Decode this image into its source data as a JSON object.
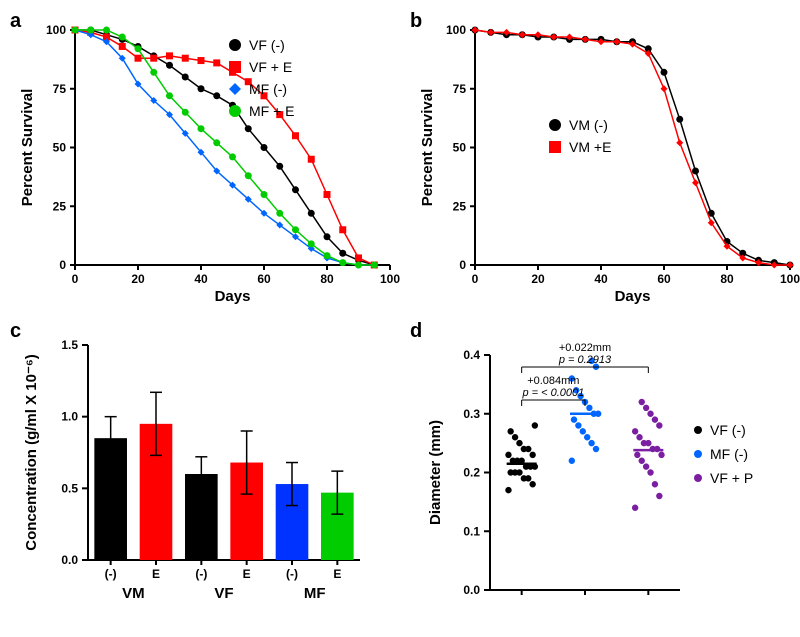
{
  "panel_a": {
    "label": "a",
    "type": "line",
    "xlabel": "Days",
    "ylabel": "Percent Survival",
    "xlim": [
      0,
      100
    ],
    "ylim": [
      0,
      100
    ],
    "xtick_step": 20,
    "ytick_step": 25,
    "background_color": "#ffffff",
    "legend": [
      {
        "name": "VF (-)",
        "marker": "circle",
        "color": "#000000"
      },
      {
        "name": "VF + E",
        "marker": "square",
        "color": "#ff0000"
      },
      {
        "name": "MF (-)",
        "marker": "diamond",
        "color": "#0066ff"
      },
      {
        "name": "MF + E",
        "marker": "circle",
        "color": "#00cc00"
      }
    ],
    "series": {
      "VF_minus": {
        "color": "#000000",
        "marker": "circle",
        "x": [
          0,
          5,
          10,
          15,
          20,
          25,
          30,
          35,
          40,
          45,
          50,
          55,
          60,
          65,
          70,
          75,
          80,
          85,
          90,
          95
        ],
        "y": [
          100,
          100,
          98,
          96,
          93,
          89,
          85,
          80,
          75,
          72,
          68,
          58,
          50,
          42,
          32,
          22,
          12,
          5,
          2,
          0
        ]
      },
      "VF_E": {
        "color": "#ff0000",
        "marker": "square",
        "x": [
          0,
          5,
          10,
          15,
          20,
          25,
          30,
          35,
          40,
          45,
          50,
          55,
          60,
          65,
          70,
          75,
          80,
          85,
          90,
          95
        ],
        "y": [
          100,
          99,
          97,
          93,
          88,
          88,
          89,
          88,
          87,
          86,
          82,
          78,
          72,
          64,
          55,
          45,
          30,
          15,
          3,
          0
        ]
      },
      "MF_minus": {
        "color": "#0066ff",
        "marker": "diamond",
        "x": [
          0,
          5,
          10,
          15,
          20,
          25,
          30,
          35,
          40,
          45,
          50,
          55,
          60,
          65,
          70,
          75,
          80,
          85,
          90,
          95
        ],
        "y": [
          100,
          98,
          95,
          88,
          77,
          70,
          64,
          56,
          48,
          40,
          34,
          28,
          22,
          17,
          12,
          7,
          3,
          1,
          0,
          0
        ]
      },
      "MF_E": {
        "color": "#00cc00",
        "marker": "circle",
        "x": [
          0,
          5,
          10,
          15,
          20,
          25,
          30,
          35,
          40,
          45,
          50,
          55,
          60,
          65,
          70,
          75,
          80,
          85,
          90,
          95
        ],
        "y": [
          100,
          100,
          100,
          97,
          92,
          82,
          72,
          65,
          58,
          52,
          46,
          38,
          30,
          22,
          15,
          9,
          4,
          1,
          0,
          0
        ]
      }
    }
  },
  "panel_b": {
    "label": "b",
    "type": "line",
    "xlabel": "Days",
    "ylabel": "Percent Survival",
    "xlim": [
      0,
      100
    ],
    "ylim": [
      0,
      100
    ],
    "xtick_step": 20,
    "ytick_step": 25,
    "legend": [
      {
        "name": "VM (-)",
        "marker": "circle",
        "color": "#000000"
      },
      {
        "name": "VM +E",
        "marker": "square",
        "color": "#ff0000"
      }
    ],
    "series": {
      "VM_minus": {
        "color": "#000000",
        "marker": "circle",
        "x": [
          0,
          5,
          10,
          15,
          20,
          25,
          30,
          35,
          40,
          45,
          50,
          55,
          60,
          65,
          70,
          75,
          80,
          85,
          90,
          95,
          100
        ],
        "y": [
          100,
          99,
          98,
          98,
          97,
          97,
          96,
          96,
          96,
          95,
          95,
          92,
          82,
          62,
          40,
          22,
          10,
          5,
          2,
          1,
          0
        ]
      },
      "VM_E": {
        "color": "#ff0000",
        "marker": "diamond",
        "x": [
          0,
          5,
          10,
          15,
          20,
          25,
          30,
          35,
          40,
          45,
          50,
          55,
          60,
          65,
          70,
          75,
          80,
          85,
          90,
          95,
          100
        ],
        "y": [
          100,
          99,
          99,
          98,
          98,
          97,
          97,
          96,
          95,
          95,
          94,
          90,
          75,
          52,
          35,
          18,
          8,
          3,
          1,
          0,
          0
        ]
      }
    }
  },
  "panel_c": {
    "label": "c",
    "type": "bar",
    "ylabel": "Concentration (g/ml X 10⁻⁶)",
    "ylim": [
      0,
      1.5
    ],
    "ytick_step": 0.5,
    "bar_width": 0.72,
    "groups": [
      "VM",
      "VF",
      "MF"
    ],
    "sub_labels": [
      "(-)",
      "E"
    ],
    "bars": [
      {
        "group": "VM",
        "cond": "(-)",
        "value": 0.85,
        "err": 0.15,
        "color": "#000000"
      },
      {
        "group": "VM",
        "cond": "E",
        "value": 0.95,
        "err": 0.22,
        "color": "#ff0000"
      },
      {
        "group": "VF",
        "cond": "(-)",
        "value": 0.6,
        "err": 0.12,
        "color": "#000000"
      },
      {
        "group": "VF",
        "cond": "E",
        "value": 0.68,
        "err": 0.22,
        "color": "#ff0000"
      },
      {
        "group": "MF",
        "cond": "(-)",
        "value": 0.53,
        "err": 0.15,
        "color": "#0033ff"
      },
      {
        "group": "MF",
        "cond": "E",
        "value": 0.47,
        "err": 0.15,
        "color": "#00cc00"
      }
    ]
  },
  "panel_d": {
    "label": "d",
    "type": "scatter",
    "ylabel": "Diameter (mm)",
    "ylim": [
      0.0,
      0.4
    ],
    "ytick_step": 0.1,
    "categories": [
      {
        "name": "VF (-)",
        "color": "#000000"
      },
      {
        "name": "MF (-)",
        "color": "#0066ff"
      },
      {
        "name": "VF + P",
        "color": "#7b1fa2"
      }
    ],
    "means": [
      0.215,
      0.3,
      0.238
    ],
    "stats": [
      {
        "label": "+0.084mm",
        "p": "p = < 0.0001",
        "from": 0,
        "to": 1
      },
      {
        "label": "+0.022mm",
        "p": "p = 0.2913",
        "from": 0,
        "to": 2
      }
    ],
    "points": {
      "VF_minus": [
        0.17,
        0.18,
        0.19,
        0.19,
        0.2,
        0.2,
        0.2,
        0.21,
        0.21,
        0.21,
        0.22,
        0.22,
        0.22,
        0.23,
        0.23,
        0.24,
        0.24,
        0.25,
        0.26,
        0.27,
        0.28
      ],
      "MF_minus": [
        0.22,
        0.24,
        0.25,
        0.26,
        0.27,
        0.28,
        0.29,
        0.3,
        0.3,
        0.31,
        0.32,
        0.33,
        0.34,
        0.36,
        0.38,
        0.39
      ],
      "VF_P": [
        0.14,
        0.16,
        0.18,
        0.2,
        0.21,
        0.22,
        0.23,
        0.23,
        0.24,
        0.24,
        0.25,
        0.25,
        0.26,
        0.27,
        0.28,
        0.29,
        0.3,
        0.31,
        0.32
      ]
    }
  }
}
